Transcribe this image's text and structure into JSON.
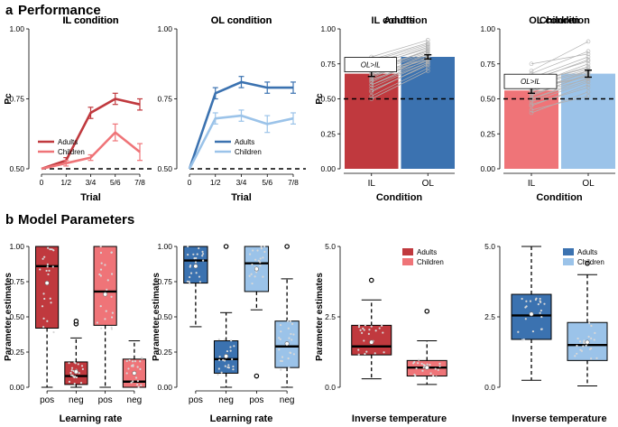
{
  "sections": {
    "a": {
      "letter": "a",
      "title": "Performance"
    },
    "b": {
      "letter": "b",
      "title": "Model Parameters"
    }
  },
  "colors": {
    "adult_il": "#c0393e",
    "child_il": "#ef7478",
    "adult_ol": "#3b72b0",
    "child_ol": "#9bc3e9",
    "gray": "#b0b0b0"
  },
  "chart_data": [
    {
      "id": "a1",
      "type": "line",
      "title": "IL condition",
      "xlabel": "Trial",
      "ylabel": "Pc",
      "categories": [
        "0",
        "1/2",
        "3/4",
        "5/6",
        "7/8"
      ],
      "ylim": [
        0.5,
        1.0
      ],
      "yticks": [
        "0.50",
        "0.75",
        "1.00"
      ],
      "ytick_values": [
        0.5,
        0.75,
        1.0
      ],
      "chance": 0.5,
      "series": [
        {
          "name": "Adults",
          "color": "#c0393e",
          "values": [
            0.5,
            0.53,
            0.7,
            0.75,
            0.73
          ],
          "err": [
            0,
            0.01,
            0.02,
            0.02,
            0.02
          ]
        },
        {
          "name": "Children",
          "color": "#ef7478",
          "values": [
            0.5,
            0.52,
            0.54,
            0.63,
            0.56
          ],
          "err": [
            0,
            0.01,
            0.01,
            0.03,
            0.03
          ]
        }
      ],
      "legend": "bottom-left"
    },
    {
      "id": "a2",
      "type": "line",
      "title": "OL condition",
      "xlabel": "Trial",
      "ylabel": "",
      "categories": [
        "0",
        "1/2",
        "3/4",
        "5/6",
        "7/8"
      ],
      "ylim": [
        0.5,
        1.0
      ],
      "yticks": [
        "0.50",
        "0.75",
        "1.00"
      ],
      "ytick_values": [
        0.5,
        0.75,
        1.0
      ],
      "chance": 0.5,
      "series": [
        {
          "name": "Adults",
          "color": "#3b72b0",
          "values": [
            0.5,
            0.77,
            0.81,
            0.79,
            0.79
          ],
          "err": [
            0,
            0.02,
            0.02,
            0.02,
            0.02
          ]
        },
        {
          "name": "Children",
          "color": "#9bc3e9",
          "values": [
            0.5,
            0.68,
            0.69,
            0.66,
            0.68
          ],
          "err": [
            0,
            0.02,
            0.02,
            0.03,
            0.02
          ]
        }
      ],
      "legend": "bottom-right"
    },
    {
      "id": "a3",
      "type": "bar",
      "title": "Adults",
      "xlabel": "Condition",
      "ylabel": "Pc",
      "categories": [
        "IL",
        "OL"
      ],
      "values": [
        0.68,
        0.8
      ],
      "err": [
        0.02,
        0.015
      ],
      "colors": [
        "#c0393e",
        "#3b72b0"
      ],
      "ylim": [
        0.0,
        1.0
      ],
      "yticks": [
        "0.00",
        "0.25",
        "0.50",
        "0.75",
        "1.00"
      ],
      "ytick_values": [
        0.0,
        0.25,
        0.5,
        0.75,
        1.0
      ],
      "chance": 0.5,
      "annotation": "OL>IL",
      "pairs_il": [
        0.6,
        0.65,
        0.7,
        0.55,
        0.75,
        0.62,
        0.8,
        0.68,
        0.72,
        0.58,
        0.5,
        0.66,
        0.78,
        0.64,
        0.7,
        0.74,
        0.56,
        0.69,
        0.63,
        0.77,
        0.52,
        0.71,
        0.67,
        0.6,
        0.73
      ],
      "pairs_ol": [
        0.78,
        0.82,
        0.85,
        0.75,
        0.88,
        0.8,
        0.92,
        0.79,
        0.84,
        0.76,
        0.7,
        0.81,
        0.9,
        0.77,
        0.83,
        0.86,
        0.74,
        0.82,
        0.8,
        0.89,
        0.72,
        0.84,
        0.78,
        0.76,
        0.87
      ]
    },
    {
      "id": "a4",
      "type": "bar",
      "title": "Children",
      "xlabel": "Condition",
      "ylabel": "",
      "categories": [
        "IL",
        "OL"
      ],
      "values": [
        0.56,
        0.68
      ],
      "err": [
        0.02,
        0.025
      ],
      "colors": [
        "#ef7478",
        "#9bc3e9"
      ],
      "ylim": [
        0.0,
        1.0
      ],
      "yticks": [
        "0.00",
        "0.25",
        "0.50",
        "0.75",
        "1.00"
      ],
      "ytick_values": [
        0.0,
        0.25,
        0.5,
        0.75,
        1.0
      ],
      "chance": 0.5,
      "annotation": "OL>IL",
      "pairs_il": [
        0.5,
        0.55,
        0.6,
        0.45,
        0.65,
        0.52,
        0.7,
        0.58,
        0.62,
        0.48,
        0.4,
        0.56,
        0.68,
        0.54,
        0.6,
        0.64,
        0.46,
        0.59,
        0.53,
        0.75,
        0.42,
        0.61,
        0.57,
        0.5,
        0.63
      ],
      "pairs_ol": [
        0.65,
        0.7,
        0.75,
        0.6,
        0.8,
        0.68,
        0.91,
        0.66,
        0.72,
        0.62,
        0.55,
        0.69,
        0.84,
        0.64,
        0.71,
        0.77,
        0.58,
        0.7,
        0.67,
        0.82,
        0.52,
        0.73,
        0.66,
        0.63,
        0.78
      ]
    },
    {
      "id": "b1",
      "type": "box",
      "title": "IL condition",
      "xlabel": "Learning rate",
      "ylabel": "Parameter estimates",
      "categories": [
        "pos",
        "neg",
        "pos",
        "neg"
      ],
      "ylim": [
        0,
        1
      ],
      "yticks": [
        "0.00",
        "0.25",
        "0.50",
        "0.75",
        "1.00"
      ],
      "ytick_values": [
        0,
        0.25,
        0.5,
        0.75,
        1.0
      ],
      "boxes": [
        {
          "color": "#c0393e",
          "min": 0.0,
          "q1": 0.42,
          "median": 0.86,
          "q3": 1.0,
          "max": 1.0,
          "mean": 0.74,
          "outliers": []
        },
        {
          "color": "#c0393e",
          "min": 0.0,
          "q1": 0.02,
          "median": 0.08,
          "q3": 0.18,
          "max": 0.35,
          "mean": 0.11,
          "outliers": [
            0.45,
            0.47
          ]
        },
        {
          "color": "#ef7478",
          "min": 0.0,
          "q1": 0.44,
          "median": 0.68,
          "q3": 1.0,
          "max": 1.0,
          "mean": 0.66,
          "outliers": []
        },
        {
          "color": "#ef7478",
          "min": 0.0,
          "q1": 0.0,
          "median": 0.04,
          "q3": 0.2,
          "max": 0.33,
          "mean": 0.1,
          "outliers": []
        }
      ]
    },
    {
      "id": "b2",
      "type": "box",
      "title": "OL condition",
      "xlabel": "Learning rate",
      "ylabel": "Parameter estimates",
      "categories": [
        "pos",
        "neg",
        "pos",
        "neg"
      ],
      "ylim": [
        0,
        1
      ],
      "yticks": [
        "0.00",
        "0.25",
        "0.50",
        "0.75",
        "1.00"
      ],
      "ytick_values": [
        0,
        0.25,
        0.5,
        0.75,
        1.0
      ],
      "boxes": [
        {
          "color": "#3b72b0",
          "min": 0.43,
          "q1": 0.74,
          "median": 0.9,
          "q3": 1.0,
          "max": 1.0,
          "mean": 0.86,
          "outliers": []
        },
        {
          "color": "#3b72b0",
          "min": 0.0,
          "q1": 0.1,
          "median": 0.2,
          "q3": 0.33,
          "max": 0.53,
          "mean": 0.22,
          "outliers": [
            1.0
          ]
        },
        {
          "color": "#9bc3e9",
          "min": 0.55,
          "q1": 0.68,
          "median": 0.88,
          "q3": 1.0,
          "max": 1.0,
          "mean": 0.84,
          "outliers": [
            0.08
          ]
        },
        {
          "color": "#9bc3e9",
          "min": 0.0,
          "q1": 0.14,
          "median": 0.29,
          "q3": 0.47,
          "max": 0.77,
          "mean": 0.31,
          "outliers": [
            1.0
          ]
        }
      ]
    },
    {
      "id": "b3",
      "type": "box",
      "title": "IL condition",
      "xlabel": "Inverse temperature",
      "ylabel": "Parameter estimates",
      "categories": [],
      "ylim": [
        0,
        5
      ],
      "yticks": [
        "0.0",
        "2.5",
        "5.0"
      ],
      "ytick_values": [
        0,
        2.5,
        5.0
      ],
      "legend": [
        "Adults",
        "Children"
      ],
      "legend_colors": [
        "#c0393e",
        "#ef7478"
      ],
      "boxes": [
        {
          "color": "#c0393e",
          "min": 0.3,
          "q1": 1.15,
          "median": 1.45,
          "q3": 2.2,
          "max": 3.1,
          "mean": 1.6,
          "outliers": [
            3.8
          ]
        },
        {
          "color": "#ef7478",
          "min": 0.1,
          "q1": 0.4,
          "median": 0.7,
          "q3": 0.95,
          "max": 1.65,
          "mean": 0.7,
          "outliers": [
            2.7
          ]
        }
      ]
    },
    {
      "id": "b4",
      "type": "box",
      "title": "OL condition",
      "xlabel": "Inverse temperature",
      "ylabel": "",
      "categories": [],
      "ylim": [
        0,
        5
      ],
      "yticks": [
        "0.0",
        "2.5",
        "5.0"
      ],
      "ytick_values": [
        0,
        2.5,
        5.0
      ],
      "legend": [
        "Adults",
        "Children"
      ],
      "legend_colors": [
        "#3b72b0",
        "#9bc3e9"
      ],
      "boxes": [
        {
          "color": "#3b72b0",
          "min": 0.25,
          "q1": 1.7,
          "median": 2.55,
          "q3": 3.3,
          "max": 5.0,
          "mean": 2.6,
          "outliers": []
        },
        {
          "color": "#9bc3e9",
          "min": 0.05,
          "q1": 0.95,
          "median": 1.5,
          "q3": 2.3,
          "max": 4.0,
          "mean": 1.6,
          "outliers": [
            4.4
          ]
        }
      ]
    }
  ]
}
